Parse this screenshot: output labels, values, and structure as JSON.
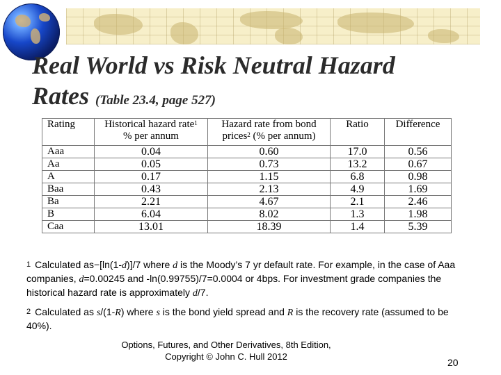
{
  "slide": {
    "title_line1": "Real World vs Risk Neutral Hazard",
    "title_line2": "Rates",
    "title_ref": "(Table 23.4, page 527)"
  },
  "table": {
    "headers": {
      "rating": "Rating",
      "hist_line1": "Historical hazard rate",
      "hist_sup": "1",
      "hist_line2": "% per annum",
      "bond_line1": "Hazard rate from bond",
      "bond_line2a": "prices",
      "bond_sup": "2",
      "bond_line2b": " (% per annum)",
      "ratio": "Ratio",
      "difference": "Difference"
    },
    "rows": [
      {
        "rating": "Aaa",
        "historical": "0.04",
        "bond": "0.60",
        "ratio": "17.0",
        "difference": "0.56"
      },
      {
        "rating": "Aa",
        "historical": "0.05",
        "bond": "0.73",
        "ratio": "13.2",
        "difference": "0.67"
      },
      {
        "rating": "A",
        "historical": "0.17",
        "bond": "1.15",
        "ratio": "6.8",
        "difference": "0.98"
      },
      {
        "rating": "Baa",
        "historical": "0.43",
        "bond": "2.13",
        "ratio": "4.9",
        "difference": "1.69"
      },
      {
        "rating": "Ba",
        "historical": "2.21",
        "bond": "4.67",
        "ratio": "2.1",
        "difference": "2.46"
      },
      {
        "rating": "B",
        "historical": "6.04",
        "bond": "8.02",
        "ratio": "1.3",
        "difference": "1.98"
      },
      {
        "rating": "Caa",
        "historical": "13.01",
        "bond": "18.39",
        "ratio": "1.4",
        "difference": "5.39"
      }
    ]
  },
  "notes": {
    "n1_marker": "1",
    "n1_a": "Calculated as−[ln(1-",
    "n1_d1": "d",
    "n1_b": ")]/7 where ",
    "n1_d2": "d",
    "n1_c": " is the Moody’s 7 yr default rate.  For example, in the case of Aaa companies, ",
    "n1_d3": "d",
    "n1_e": "=0.00245 and -ln(0.99755)/7=0.0004 or 4bps. For investment grade companies the historical hazard rate is approximately ",
    "n1_d4": "d",
    "n1_f": "/7.",
    "n2_marker": "2",
    "n2_a": "Calculated as ",
    "n2_s1": "s",
    "n2_b": "/(1-",
    "n2_r1": "R",
    "n2_c": ") where ",
    "n2_s2": "s",
    "n2_d": " is the bond yield spread and ",
    "n2_r2": "R",
    "n2_e": " is the recovery rate (assumed to be 40%)."
  },
  "footer": {
    "line1": "Options, Futures, and Other Derivatives, 8th Edition,",
    "line2": "Copyright © John  C. Hull 2012",
    "page_number": "20"
  },
  "decor": {
    "banner_icon": "world-map-icon",
    "globe_icon": "globe-icon",
    "banner_color": "#f7efc9",
    "globe_color": "#1747c9"
  }
}
